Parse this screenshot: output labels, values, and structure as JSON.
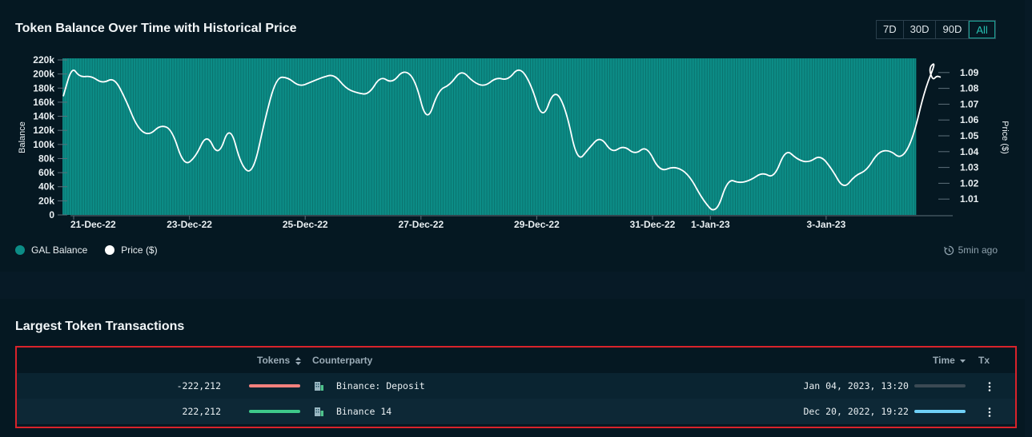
{
  "balance_chart": {
    "title": "Token Balance Over Time with Historical Price",
    "ranges": [
      "7D",
      "30D",
      "90D",
      "All"
    ],
    "active_range": "All",
    "updated": "5min ago",
    "colors": {
      "balance": "#0c8c86",
      "price": "#ffffff"
    },
    "chart_data": {
      "type": "area",
      "title": "Token Balance Over Time with Historical Price",
      "x_tick_labels": [
        "21-Dec-22",
        "23-Dec-22",
        "25-Dec-22",
        "27-Dec-22",
        "29-Dec-22",
        "31-Dec-22",
        "1-Jan-23",
        "3-Jan-23"
      ],
      "ylabel": "Balance",
      "ylabel_right": "Price ($)",
      "y_ticks": [
        "0",
        "20k",
        "40k",
        "60k",
        "80k",
        "100k",
        "120k",
        "140k",
        "160k",
        "180k",
        "200k",
        "220k"
      ],
      "y_right_ticks": [
        "1.01",
        "1.02",
        "1.03",
        "1.04",
        "1.05",
        "1.06",
        "1.07",
        "1.08",
        "1.09"
      ],
      "ylim": [
        0,
        220000
      ],
      "ylim_right": [
        1.0,
        1.1
      ],
      "legend": [
        "GAL Balance",
        "Price ($)"
      ],
      "legend_position": "bottom-left",
      "series": [
        {
          "name": "GAL Balance",
          "x": [
            "2022-12-20",
            "2023-01-04"
          ],
          "values": [
            222212,
            222212
          ]
        },
        {
          "name": "Price ($)",
          "x": [
            "2022-12-20",
            "2022-12-20",
            "2022-12-21",
            "2022-12-21",
            "2022-12-21",
            "2022-12-21",
            "2022-12-21",
            "2022-12-22",
            "2022-12-22",
            "2022-12-22",
            "2022-12-22",
            "2022-12-22",
            "2022-12-23",
            "2022-12-23",
            "2022-12-23",
            "2022-12-23",
            "2022-12-23",
            "2022-12-24",
            "2022-12-24",
            "2022-12-24",
            "2022-12-24",
            "2022-12-24",
            "2022-12-25",
            "2022-12-25",
            "2022-12-25",
            "2022-12-25",
            "2022-12-25",
            "2022-12-26",
            "2022-12-26",
            "2022-12-26",
            "2022-12-26",
            "2022-12-26",
            "2022-12-27",
            "2022-12-27",
            "2022-12-27",
            "2022-12-27",
            "2022-12-27",
            "2022-12-28",
            "2022-12-28",
            "2022-12-28",
            "2022-12-28",
            "2022-12-28",
            "2022-12-29",
            "2022-12-29",
            "2022-12-29",
            "2022-12-29",
            "2022-12-29",
            "2022-12-30",
            "2022-12-30",
            "2022-12-30",
            "2022-12-30",
            "2022-12-30",
            "2022-12-31",
            "2022-12-31",
            "2022-12-31",
            "2022-12-31",
            "2023-01-01",
            "2023-01-01",
            "2023-01-01",
            "2023-01-01",
            "2023-01-01",
            "2023-01-02",
            "2023-01-02",
            "2023-01-02",
            "2023-01-02",
            "2023-01-02",
            "2023-01-03",
            "2023-01-03",
            "2023-01-03",
            "2023-01-03",
            "2023-01-03",
            "2023-01-04",
            "2023-01-04",
            "2023-01-04",
            "2023-01-04",
            "2023-01-04"
          ],
          "values": [
            1.075,
            1.094,
            1.087,
            1.088,
            1.083,
            1.087,
            1.073,
            1.055,
            1.05,
            1.057,
            1.054,
            1.031,
            1.036,
            1.052,
            1.036,
            1.058,
            1.03,
            1.026,
            1.06,
            1.087,
            1.087,
            1.081,
            1.084,
            1.087,
            1.089,
            1.08,
            1.077,
            1.076,
            1.088,
            1.083,
            1.092,
            1.086,
            1.057,
            1.079,
            1.082,
            1.092,
            1.084,
            1.081,
            1.087,
            1.085,
            1.094,
            1.083,
            1.059,
            1.08,
            1.068,
            1.033,
            1.042,
            1.05,
            1.039,
            1.044,
            1.038,
            1.044,
            1.027,
            1.031,
            1.026,
            1.009,
            1.0,
            1.023,
            1.02,
            1.022,
            1.027,
            1.023,
            1.042,
            1.035,
            1.033,
            1.038,
            1.029,
            1.016,
            1.025,
            1.028,
            1.04,
            1.041,
            1.035,
            1.048,
            1.079,
            1.097
          ]
        }
      ]
    }
  },
  "transactions": {
    "title": "Largest Token Transactions",
    "columns": {
      "tokens": "Tokens",
      "counterparty": "Counterparty",
      "time": "Time",
      "tx": "Tx"
    },
    "sort_icon": "sort-updown-icon",
    "sort_desc_icon": "caret-down-icon",
    "rows": [
      {
        "tokens": "-222,212",
        "bar_color": "#f3817d",
        "counterparty": "Binance: Deposit",
        "time": "Jan 04, 2023, 13:20",
        "time_bar_color": "#3b4a54",
        "icon": "exchange-building-icon"
      },
      {
        "tokens": "222,212",
        "bar_color": "#3ec98a",
        "counterparty": "Binance 14",
        "time": "Dec 20, 2022, 19:22",
        "time_bar_color": "#6fd0f6",
        "icon": "exchange-building-icon"
      }
    ]
  }
}
